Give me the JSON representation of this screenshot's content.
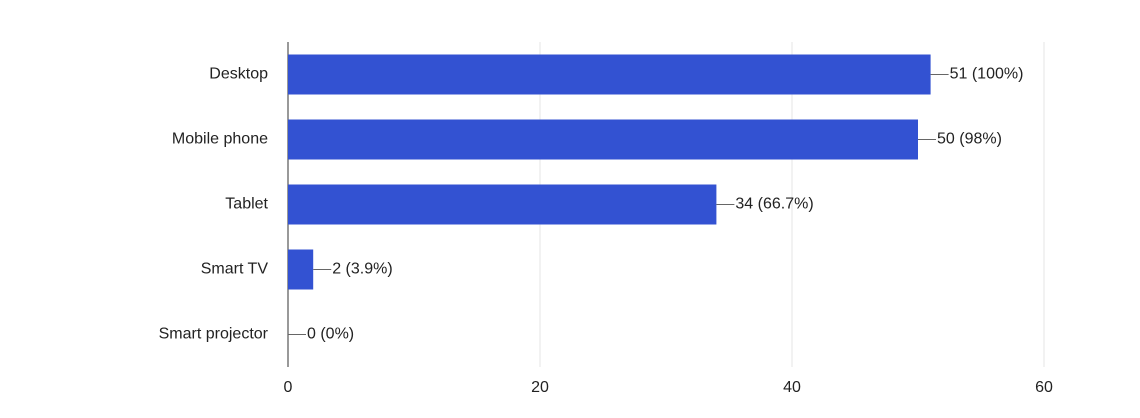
{
  "chart_data": {
    "type": "bar",
    "orientation": "horizontal",
    "categories": [
      "Desktop",
      "Mobile phone",
      "Tablet",
      "Smart TV",
      "Smart projector"
    ],
    "values": [
      51,
      50,
      34,
      2,
      0
    ],
    "value_labels": [
      "51 (100%)",
      "50 (98%)",
      "34 (66.7%)",
      "2 (3.9%)",
      "0 (0%)"
    ],
    "color": "#3352d2",
    "xlim": [
      0,
      60
    ],
    "xticks": [
      0,
      20,
      40,
      60
    ],
    "grid": true
  }
}
